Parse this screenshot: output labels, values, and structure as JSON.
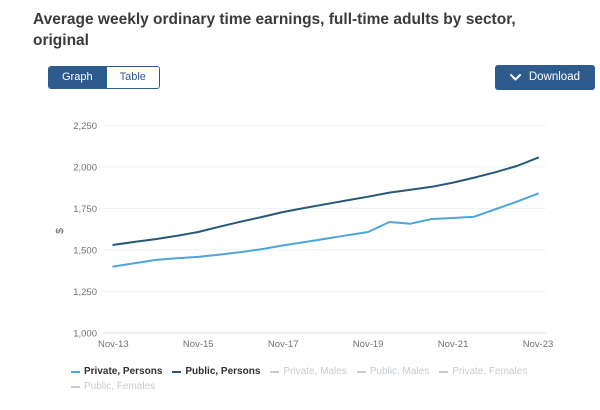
{
  "header": {
    "title": "Average weekly ordinary time earnings, full-time adults by sector, original"
  },
  "toolbar": {
    "view_toggle": [
      {
        "label": "Graph",
        "active": true
      },
      {
        "label": "Table",
        "active": false
      }
    ],
    "download_label": "Download",
    "download_icon": "chevron-down-icon"
  },
  "colors": {
    "brand_blue": "#2d5b8e",
    "series_private": "#4da5dd",
    "series_public": "#275877",
    "inactive_gray": "#c6cbd0",
    "tick_text": "#6d7277",
    "gridline": "#eef0f3",
    "axis_line": "#dce1e6",
    "title_text": "#3b3b3b"
  },
  "chart_data": {
    "type": "line",
    "title": "Average weekly ordinary time earnings, full-time adults by sector, original",
    "xlabel": "",
    "ylabel": "$",
    "ylim": [
      1000,
      2250
    ],
    "grid": true,
    "legend_position": "bottom",
    "x": [
      "Nov-13",
      "May-14",
      "Nov-14",
      "May-15",
      "Nov-15",
      "May-16",
      "Nov-16",
      "May-17",
      "Nov-17",
      "May-18",
      "Nov-18",
      "May-19",
      "Nov-19",
      "May-20",
      "Nov-20",
      "May-21",
      "Nov-21",
      "May-22",
      "Nov-22",
      "May-23",
      "Nov-23"
    ],
    "xticks": [
      {
        "label": "Nov-13",
        "index": 0
      },
      {
        "label": "Nov-15",
        "index": 4
      },
      {
        "label": "Nov-17",
        "index": 8
      },
      {
        "label": "Nov-19",
        "index": 12
      },
      {
        "label": "Nov-21",
        "index": 16
      },
      {
        "label": "Nov-23",
        "index": 20
      }
    ],
    "yticks": [
      {
        "label": "2,250",
        "value": 2250
      },
      {
        "label": "2,000",
        "value": 2000
      },
      {
        "label": "1,750",
        "value": 1750
      },
      {
        "label": "1,500",
        "value": 1500
      },
      {
        "label": "1,250",
        "value": 1250
      },
      {
        "label": "1,000",
        "value": 1000
      }
    ],
    "series": [
      {
        "name": "Private, Persons",
        "active": true,
        "color": "#4da5dd",
        "values": [
          1400,
          1420,
          1440,
          1450,
          1458,
          1472,
          1487,
          1505,
          1527,
          1547,
          1567,
          1588,
          1608,
          1668,
          1658,
          1686,
          1692,
          1700,
          1745,
          1790,
          1839
        ]
      },
      {
        "name": "Public, Persons",
        "active": true,
        "color": "#275877",
        "values": [
          1530,
          1548,
          1565,
          1585,
          1608,
          1640,
          1670,
          1698,
          1728,
          1752,
          1775,
          1798,
          1820,
          1845,
          1862,
          1880,
          1905,
          1935,
          1968,
          2005,
          2055
        ]
      },
      {
        "name": "Private, Males",
        "active": false
      },
      {
        "name": "Public, Males",
        "active": false
      },
      {
        "name": "Private, Females",
        "active": false
      },
      {
        "name": "Public, Females",
        "active": false
      }
    ]
  }
}
